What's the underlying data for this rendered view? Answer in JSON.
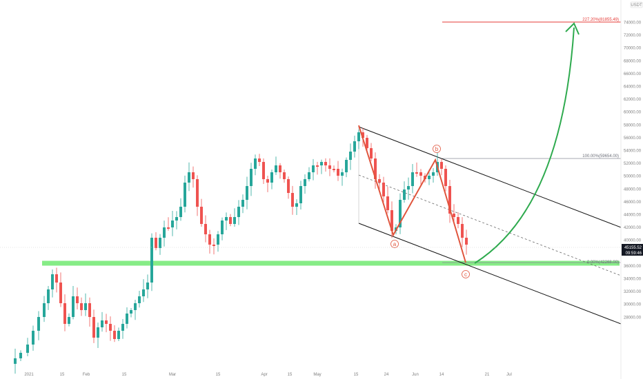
{
  "chart_data": {
    "type": "candlestick",
    "currency": "USDT",
    "y_ticks": [
      "74000.00",
      "72000.00",
      "70000.00",
      "68000.00",
      "66000.00",
      "64000.00",
      "62000.00",
      "60000.00",
      "58000.00",
      "56000.00",
      "54000.00",
      "52000.00",
      "50000.00",
      "48000.00",
      "46000.00",
      "44000.00",
      "42000.00",
      "40000.00",
      "38000.00",
      "36000.00",
      "34000.00",
      "32000.00",
      "30000.00",
      "28000.00"
    ],
    "x_ticks": [
      "2021",
      "15",
      "Feb",
      "15",
      "Mar",
      "15",
      "Apr",
      "15",
      "May",
      "15",
      "24",
      "Jun",
      "14",
      "21",
      "Jul"
    ],
    "current_price": "45155.52",
    "countdown": "09:59:46",
    "fib_levels": [
      {
        "label": "227.20%(81855.49)",
        "value": 81855.49,
        "color": "#e53935"
      },
      {
        "label": "100.00%(59654.00)",
        "value": 59654.0,
        "color": "#787b86"
      },
      {
        "label": "0.00%(42268.00)",
        "value": 42268.0,
        "color": "#787b86"
      }
    ],
    "support_zone": 42268,
    "wave_labels": [
      "a",
      "b",
      "c"
    ],
    "colors": {
      "up": "#26a69a",
      "down": "#ef5350",
      "wave": "#e0543c",
      "arrow": "#2eaa4e",
      "support": "#7de07d"
    }
  }
}
